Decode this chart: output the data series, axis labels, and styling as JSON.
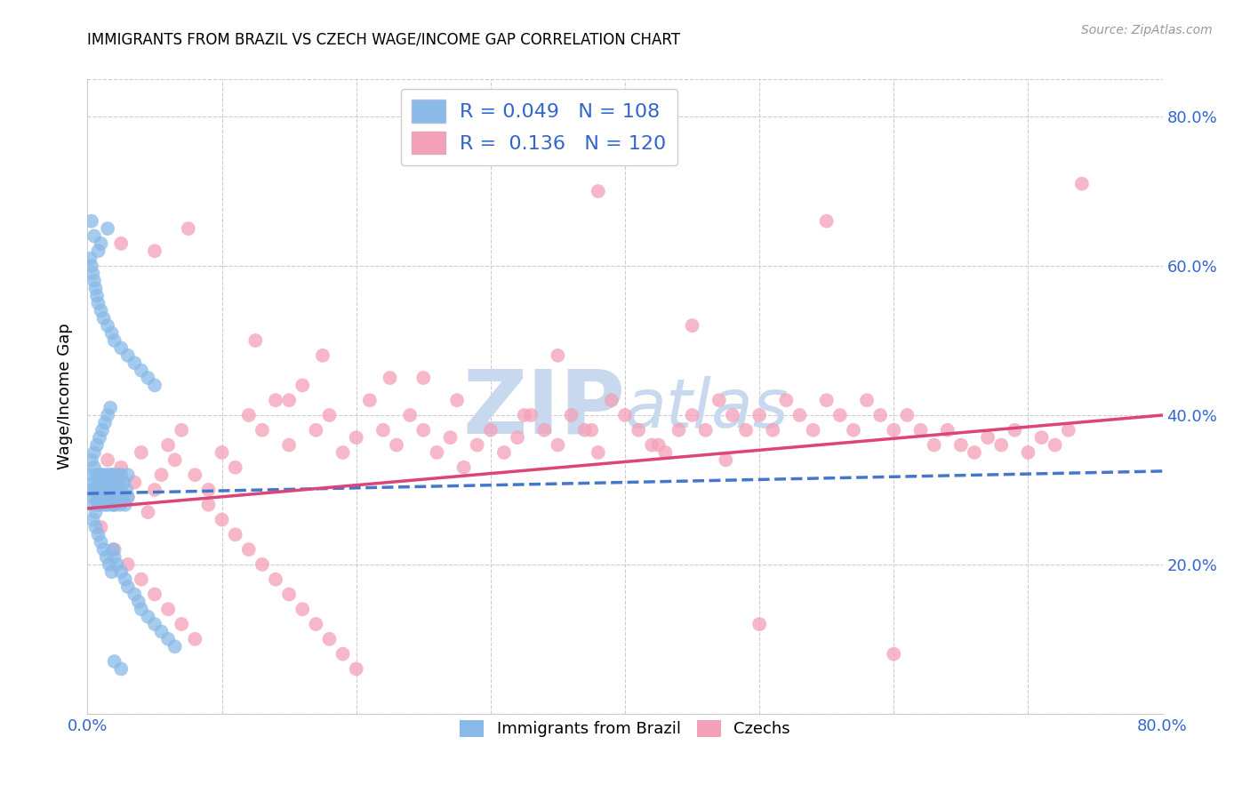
{
  "title": "IMMIGRANTS FROM BRAZIL VS CZECH WAGE/INCOME GAP CORRELATION CHART",
  "source": "Source: ZipAtlas.com",
  "ylabel": "Wage/Income Gap",
  "legend_label1": "Immigrants from Brazil",
  "legend_label2": "Czechs",
  "r1": 0.049,
  "n1": 108,
  "r2": 0.136,
  "n2": 120,
  "color1": "#89BAE8",
  "color2": "#F4A0B8",
  "trendline1_color": "#4477CC",
  "trendline2_color": "#DD4477",
  "watermark_color": "#C8D8EE",
  "xlim": [
    0.0,
    0.8
  ],
  "ylim": [
    0.0,
    0.85
  ],
  "yticks": [
    0.0,
    0.2,
    0.4,
    0.6,
    0.8
  ],
  "ytick_labels_right": [
    "",
    "20.0%",
    "40.0%",
    "60.0%",
    "80.0%"
  ],
  "xticks": [
    0.0,
    0.1,
    0.2,
    0.3,
    0.4,
    0.5,
    0.6,
    0.7,
    0.8
  ],
  "xtick_labels": [
    "0.0%",
    "",
    "",
    "",
    "",
    "",
    "",
    "",
    "80.0%"
  ],
  "brazil_x": [
    0.002,
    0.003,
    0.004,
    0.005,
    0.005,
    0.005,
    0.006,
    0.006,
    0.007,
    0.007,
    0.008,
    0.008,
    0.008,
    0.009,
    0.009,
    0.01,
    0.01,
    0.011,
    0.011,
    0.012,
    0.012,
    0.013,
    0.013,
    0.014,
    0.014,
    0.015,
    0.015,
    0.016,
    0.016,
    0.017,
    0.017,
    0.018,
    0.018,
    0.019,
    0.02,
    0.02,
    0.02,
    0.021,
    0.022,
    0.022,
    0.023,
    0.024,
    0.025,
    0.025,
    0.026,
    0.027,
    0.028,
    0.029,
    0.03,
    0.03,
    0.003,
    0.004,
    0.005,
    0.006,
    0.007,
    0.008,
    0.009,
    0.01,
    0.011,
    0.012,
    0.013,
    0.014,
    0.015,
    0.016,
    0.017,
    0.018,
    0.019,
    0.02,
    0.022,
    0.025,
    0.028,
    0.03,
    0.035,
    0.038,
    0.04,
    0.045,
    0.05,
    0.055,
    0.06,
    0.065,
    0.002,
    0.003,
    0.004,
    0.005,
    0.006,
    0.007,
    0.008,
    0.01,
    0.012,
    0.015,
    0.018,
    0.02,
    0.025,
    0.03,
    0.035,
    0.04,
    0.045,
    0.05,
    0.02,
    0.025,
    0.015,
    0.01,
    0.008,
    0.005,
    0.003,
    0.007,
    0.012,
    0.018
  ],
  "brazil_y": [
    0.3,
    0.32,
    0.29,
    0.31,
    0.28,
    0.33,
    0.27,
    0.3,
    0.32,
    0.29,
    0.31,
    0.28,
    0.3,
    0.32,
    0.29,
    0.31,
    0.28,
    0.3,
    0.32,
    0.29,
    0.31,
    0.28,
    0.3,
    0.32,
    0.29,
    0.31,
    0.28,
    0.3,
    0.32,
    0.29,
    0.31,
    0.28,
    0.3,
    0.32,
    0.29,
    0.31,
    0.28,
    0.3,
    0.32,
    0.29,
    0.31,
    0.28,
    0.3,
    0.32,
    0.29,
    0.31,
    0.28,
    0.3,
    0.32,
    0.29,
    0.34,
    0.26,
    0.35,
    0.25,
    0.36,
    0.24,
    0.37,
    0.23,
    0.38,
    0.22,
    0.39,
    0.21,
    0.4,
    0.2,
    0.41,
    0.19,
    0.22,
    0.21,
    0.2,
    0.19,
    0.18,
    0.17,
    0.16,
    0.15,
    0.14,
    0.13,
    0.12,
    0.11,
    0.1,
    0.09,
    0.61,
    0.6,
    0.59,
    0.58,
    0.57,
    0.56,
    0.55,
    0.54,
    0.53,
    0.52,
    0.51,
    0.5,
    0.49,
    0.48,
    0.47,
    0.46,
    0.45,
    0.44,
    0.07,
    0.06,
    0.65,
    0.63,
    0.62,
    0.64,
    0.66,
    0.3,
    0.31,
    0.32
  ],
  "czech_x": [
    0.005,
    0.01,
    0.015,
    0.02,
    0.025,
    0.03,
    0.035,
    0.04,
    0.045,
    0.05,
    0.055,
    0.06,
    0.065,
    0.07,
    0.08,
    0.09,
    0.1,
    0.11,
    0.12,
    0.13,
    0.14,
    0.15,
    0.16,
    0.17,
    0.18,
    0.19,
    0.2,
    0.21,
    0.22,
    0.23,
    0.24,
    0.25,
    0.26,
    0.27,
    0.28,
    0.29,
    0.3,
    0.31,
    0.32,
    0.33,
    0.34,
    0.35,
    0.36,
    0.37,
    0.38,
    0.39,
    0.4,
    0.41,
    0.42,
    0.43,
    0.44,
    0.45,
    0.46,
    0.47,
    0.48,
    0.49,
    0.5,
    0.51,
    0.52,
    0.53,
    0.54,
    0.55,
    0.56,
    0.57,
    0.58,
    0.59,
    0.6,
    0.61,
    0.62,
    0.63,
    0.64,
    0.65,
    0.66,
    0.67,
    0.68,
    0.69,
    0.7,
    0.71,
    0.72,
    0.73,
    0.01,
    0.02,
    0.03,
    0.04,
    0.05,
    0.06,
    0.07,
    0.08,
    0.09,
    0.1,
    0.11,
    0.12,
    0.13,
    0.14,
    0.15,
    0.16,
    0.17,
    0.18,
    0.19,
    0.2,
    0.38,
    0.55,
    0.74,
    0.5,
    0.6,
    0.45,
    0.35,
    0.25,
    0.15,
    0.05,
    0.025,
    0.075,
    0.125,
    0.175,
    0.225,
    0.275,
    0.325,
    0.375,
    0.425,
    0.475
  ],
  "czech_y": [
    0.3,
    0.32,
    0.34,
    0.28,
    0.33,
    0.29,
    0.31,
    0.35,
    0.27,
    0.3,
    0.32,
    0.36,
    0.34,
    0.38,
    0.32,
    0.3,
    0.35,
    0.33,
    0.4,
    0.38,
    0.42,
    0.36,
    0.44,
    0.38,
    0.4,
    0.35,
    0.37,
    0.42,
    0.38,
    0.36,
    0.4,
    0.38,
    0.35,
    0.37,
    0.33,
    0.36,
    0.38,
    0.35,
    0.37,
    0.4,
    0.38,
    0.36,
    0.4,
    0.38,
    0.35,
    0.42,
    0.4,
    0.38,
    0.36,
    0.35,
    0.38,
    0.4,
    0.38,
    0.42,
    0.4,
    0.38,
    0.4,
    0.38,
    0.42,
    0.4,
    0.38,
    0.42,
    0.4,
    0.38,
    0.42,
    0.4,
    0.38,
    0.4,
    0.38,
    0.36,
    0.38,
    0.36,
    0.35,
    0.37,
    0.36,
    0.38,
    0.35,
    0.37,
    0.36,
    0.38,
    0.25,
    0.22,
    0.2,
    0.18,
    0.16,
    0.14,
    0.12,
    0.1,
    0.28,
    0.26,
    0.24,
    0.22,
    0.2,
    0.18,
    0.16,
    0.14,
    0.12,
    0.1,
    0.08,
    0.06,
    0.7,
    0.66,
    0.71,
    0.12,
    0.08,
    0.52,
    0.48,
    0.45,
    0.42,
    0.62,
    0.63,
    0.65,
    0.5,
    0.48,
    0.45,
    0.42,
    0.4,
    0.38,
    0.36,
    0.34
  ]
}
